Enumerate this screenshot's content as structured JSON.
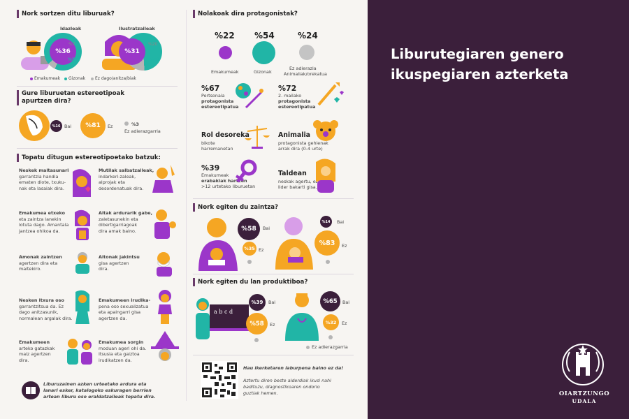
{
  "header": {
    "title_line1": "Liburutegiaren genero",
    "title_line2": "ikuspegiaren azterketa"
  },
  "logo": {
    "name": "OIARTZUNGO",
    "sub": "UDALA"
  },
  "colors": {
    "purple": "#9b36c9",
    "teal": "#21b5a6",
    "orange": "#f5a623",
    "grey": "#b5b5b5",
    "dark": "#3b1f3b"
  },
  "s1": {
    "title": "Nork sortzen ditu liburuak?",
    "writers_label": "Idazleak",
    "illus_label": "Ilustratzaileak",
    "writers": {
      "women": "%36",
      "men": "%57",
      "other": "%7"
    },
    "illus": {
      "women": "%31",
      "men": "%49",
      "other": "%20"
    },
    "legend": [
      "Emakumeak",
      "Gizonak",
      "Ez dago/anitza/biak"
    ]
  },
  "s2": {
    "title_l1": "Gure liburuetan estereotipoak",
    "title_l2": "apurtzen dira?",
    "yes_pct": "%16",
    "yes": "Bai",
    "no_pct": "%81",
    "no": "Ez",
    "na_pct": "%3",
    "na": "Ez adierazgarria"
  },
  "s3": {
    "title": "Topatu ditugun estereotipoetako batzuk:",
    "items_left": [
      [
        "Neskek maitasunari",
        "garrantzia handia",
        "ematen diote, txuku-",
        "nak eta lasaiak dira."
      ],
      [
        "Emakumea etxeko",
        "eta zaintza lanekin",
        "lotuta dago. Amantala",
        "jantzea ohikoa da."
      ],
      [
        "Amonak zaintzen",
        "agertzen dira eta",
        "maitekiro."
      ],
      [
        "Nesken itxura oso",
        "garrantzitsua da. Ez",
        "dago anitzasunik,",
        "normalean argalak dira."
      ],
      [
        "Emakumeen",
        "arteko gatazkak",
        "maiz agertzen",
        "dira."
      ]
    ],
    "items_right": [
      [
        "Mutilak salbatzaileak,",
        "indarkeri-zaleak,",
        "alprojak eta",
        "desordenatuak dira."
      ],
      [
        "Aitak ardurarik gabe,",
        "zaletasunekin eta",
        "dibertigarriagoak",
        "dira amak baino."
      ],
      [
        "Aitonak jakintsu",
        "gisa agertzen",
        "dira."
      ],
      [
        "Emakumeen irudika-",
        "pena oso sexualizatua",
        "eta apaingarri gisa",
        "agertzen da."
      ],
      [
        "Emakumea sorgin",
        "moduan ageri ohi da.",
        "Itsusia eta gaiztoa",
        "irudikatzen da."
      ]
    ],
    "footer": [
      "Liburuzainen azken urteetako ardura eta",
      "lanari esker, katalogoko eskuragen berrien",
      "artean liburu oso eraldatzaileak topatu dira."
    ]
  },
  "s4": {
    "title": "Nolakoak dira protagonistak?",
    "women_pct": "%22",
    "women": "Emakumeak",
    "men_pct": "%54",
    "men": "Gizonak",
    "na_pct": "%24",
    "na_l1": "Ez adierazia",
    "na_l2": "Animaliak/orekatua",
    "f1_pct": "%67",
    "f1": [
      "Pertsonaia",
      "protagonista",
      "estereotipatua"
    ],
    "f2_pct": "%72",
    "f2": [
      "2. mailako",
      "protagonista",
      "estereotipatua"
    ],
    "rol": [
      "Rol desoreka",
      "bikote",
      "harremanetan"
    ],
    "anim": [
      "Animalia",
      "protagonista gehienak",
      "arrak dira (0-4 urte)"
    ],
    "f3_pct": "%39",
    "f3": [
      "Emakumeak",
      "erabakiak hartzen",
      ">12 urtetako liburuetan"
    ],
    "taldean": [
      "Taldean",
      "neskak agertu, ez",
      "lider bakarti gisa."
    ]
  },
  "s5": {
    "title": "Nork egiten du zaintza?",
    "w_yes": "%58",
    "w_no": "%35",
    "m_yes": "%14",
    "m_no": "%83",
    "yes": "Bai",
    "no": "Ez"
  },
  "s6": {
    "title": "Nork egiten du lan produktiboa?",
    "w_yes": "%39",
    "w_no": "%58",
    "m_yes": "%65",
    "m_no": "%32",
    "yes": "Bai",
    "no": "Ez",
    "board": "a b c d",
    "na": "Ez adierazgarria"
  },
  "qr": {
    "line1": "Hau ikerketaren laburpena baino ez da!",
    "line2": [
      "Aztertu diren beste alderdiak ikusi nahi",
      "badituzu, diagnostikoaren ondorio",
      "guztiak hemen."
    ]
  }
}
